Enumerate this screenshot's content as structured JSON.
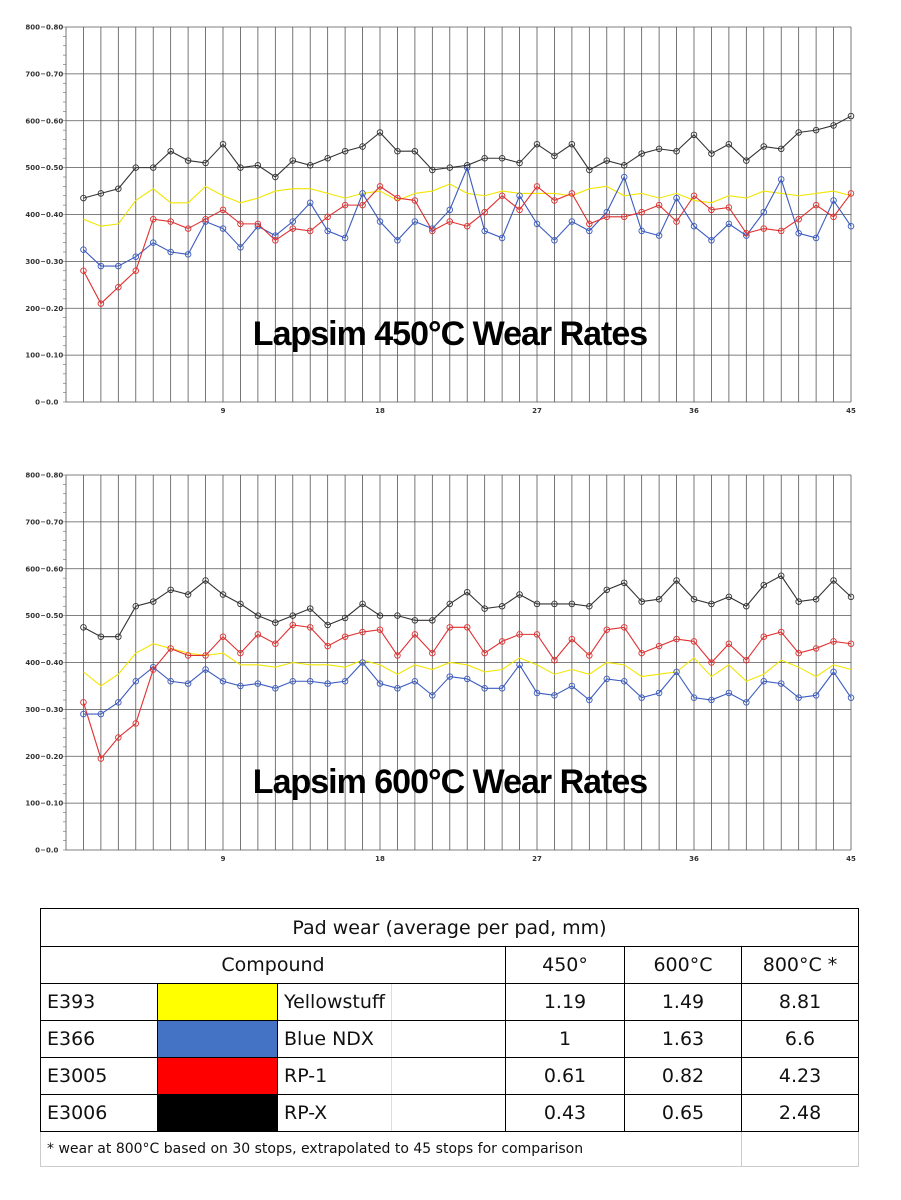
{
  "chart_data": [
    {
      "type": "line",
      "title": "Lapsim 450°C Wear Rates",
      "xlim": [
        0,
        45
      ],
      "ylim": [
        0,
        800
      ],
      "x_ticks": [
        9,
        18,
        27,
        36,
        45
      ],
      "y_ticks": [
        {
          "value": 0,
          "left": "0",
          "right": "0.0"
        },
        {
          "value": 100,
          "left": "100",
          "right": "0.10"
        },
        {
          "value": 200,
          "left": "200",
          "right": "0.20"
        },
        {
          "value": 300,
          "left": "300",
          "right": "0.30"
        },
        {
          "value": 400,
          "left": "400",
          "right": "0.40"
        },
        {
          "value": 500,
          "left": "500",
          "right": "0.50"
        },
        {
          "value": 600,
          "left": "600",
          "right": "0.60"
        },
        {
          "value": 700,
          "left": "700",
          "right": "0.70"
        },
        {
          "value": 800,
          "left": "800",
          "right": "0.80"
        }
      ],
      "series": [
        {
          "color": "#f2e600",
          "marker": false,
          "values": [
            390,
            375,
            380,
            430,
            455,
            425,
            425,
            460,
            440,
            425,
            435,
            450,
            455,
            455,
            445,
            435,
            445,
            450,
            430,
            445,
            450,
            465,
            445,
            440,
            450,
            445,
            445,
            445,
            440,
            455,
            460,
            440,
            445,
            435,
            445,
            430,
            425,
            440,
            435,
            450,
            445,
            440,
            445,
            450,
            440
          ]
        },
        {
          "color": "#3b5bbf",
          "marker": true,
          "values": [
            325,
            290,
            290,
            310,
            340,
            320,
            315,
            385,
            370,
            330,
            375,
            355,
            385,
            425,
            365,
            350,
            445,
            385,
            345,
            385,
            370,
            410,
            500,
            365,
            350,
            440,
            380,
            345,
            385,
            365,
            405,
            480,
            365,
            355,
            435,
            375,
            345,
            380,
            355,
            405,
            475,
            360,
            350,
            430,
            375
          ]
        },
        {
          "color": "#e03030",
          "marker": true,
          "values": [
            280,
            210,
            245,
            280,
            390,
            385,
            370,
            390,
            410,
            380,
            380,
            345,
            370,
            365,
            395,
            420,
            420,
            460,
            435,
            430,
            365,
            385,
            375,
            405,
            440,
            410,
            460,
            430,
            445,
            380,
            395,
            395,
            405,
            420,
            385,
            440,
            410,
            415,
            360,
            370,
            365,
            390,
            420,
            395,
            445
          ]
        },
        {
          "color": "#333333",
          "marker": true,
          "values": [
            435,
            445,
            455,
            500,
            500,
            535,
            515,
            510,
            550,
            500,
            505,
            480,
            515,
            505,
            520,
            535,
            545,
            575,
            535,
            535,
            495,
            500,
            505,
            520,
            520,
            510,
            550,
            525,
            550,
            495,
            515,
            505,
            530,
            540,
            535,
            570,
            530,
            550,
            515,
            545,
            540,
            575,
            580,
            590,
            610
          ]
        }
      ]
    },
    {
      "type": "line",
      "title": "Lapsim 600°C Wear Rates",
      "xlim": [
        0,
        45
      ],
      "ylim": [
        0,
        800
      ],
      "x_ticks": [
        9,
        18,
        27,
        36,
        45
      ],
      "y_ticks": [
        {
          "value": 0,
          "left": "0",
          "right": "0.0"
        },
        {
          "value": 100,
          "left": "100",
          "right": "0.10"
        },
        {
          "value": 200,
          "left": "200",
          "right": "0.20"
        },
        {
          "value": 300,
          "left": "300",
          "right": "0.30"
        },
        {
          "value": 400,
          "left": "400",
          "right": "0.40"
        },
        {
          "value": 500,
          "left": "500",
          "right": "0.50"
        },
        {
          "value": 600,
          "left": "600",
          "right": "0.60"
        },
        {
          "value": 700,
          "left": "700",
          "right": "0.70"
        },
        {
          "value": 800,
          "left": "800",
          "right": "0.80"
        }
      ],
      "series": [
        {
          "color": "#f2e600",
          "marker": false,
          "values": [
            380,
            350,
            375,
            420,
            440,
            430,
            420,
            415,
            420,
            395,
            395,
            390,
            400,
            395,
            395,
            390,
            405,
            395,
            375,
            395,
            385,
            400,
            395,
            380,
            385,
            410,
            395,
            375,
            385,
            375,
            400,
            395,
            370,
            375,
            380,
            410,
            370,
            395,
            360,
            375,
            405,
            390,
            370,
            395,
            385
          ]
        },
        {
          "color": "#3b5bbf",
          "marker": true,
          "values": [
            290,
            290,
            315,
            360,
            390,
            360,
            355,
            385,
            360,
            350,
            355,
            345,
            360,
            360,
            355,
            360,
            400,
            355,
            345,
            360,
            330,
            370,
            365,
            345,
            345,
            395,
            335,
            330,
            350,
            320,
            365,
            360,
            325,
            335,
            380,
            325,
            320,
            335,
            315,
            360,
            355,
            325,
            330,
            380,
            325
          ]
        },
        {
          "color": "#e03030",
          "marker": true,
          "values": [
            315,
            195,
            240,
            270,
            385,
            430,
            415,
            415,
            455,
            420,
            460,
            440,
            480,
            475,
            435,
            455,
            465,
            470,
            415,
            460,
            420,
            475,
            475,
            420,
            445,
            460,
            460,
            405,
            450,
            415,
            470,
            475,
            420,
            435,
            450,
            445,
            400,
            440,
            405,
            455,
            465,
            420,
            430,
            445,
            440
          ]
        },
        {
          "color": "#333333",
          "marker": true,
          "values": [
            475,
            455,
            455,
            520,
            530,
            555,
            545,
            575,
            545,
            525,
            500,
            485,
            500,
            515,
            480,
            495,
            525,
            500,
            500,
            490,
            490,
            525,
            550,
            515,
            520,
            545,
            525,
            525,
            525,
            520,
            555,
            570,
            530,
            535,
            575,
            535,
            525,
            540,
            520,
            565,
            585,
            530,
            535,
            575,
            540
          ]
        }
      ]
    }
  ],
  "table": {
    "title": "Pad wear (average per pad, mm)",
    "headers": [
      "Compound",
      "450°",
      "600°C",
      "800°C *"
    ],
    "rows": [
      {
        "code": "E393",
        "swatch": "#ffff00",
        "name": "Yellowstuff",
        "v450": "1.19",
        "v600": "1.49",
        "v800": "8.81"
      },
      {
        "code": "E366",
        "swatch": "#4472c4",
        "name": "Blue NDX",
        "v450": "1",
        "v600": "1.63",
        "v800": "6.6"
      },
      {
        "code": "E3005",
        "swatch": "#ff0000",
        "name": "RP-1",
        "v450": "0.61",
        "v600": "0.82",
        "v800": "4.23"
      },
      {
        "code": "E3006",
        "swatch": "#000000",
        "name": "RP-X",
        "v450": "0.43",
        "v600": "0.65",
        "v800": "2.48"
      }
    ],
    "footnote": "* wear at 800°C based on 30 stops, extrapolated to 45 stops for comparison"
  }
}
